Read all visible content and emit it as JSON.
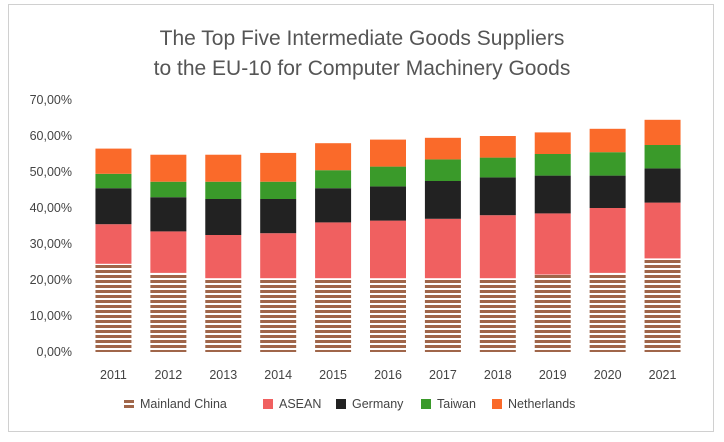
{
  "chart_data": {
    "type": "bar",
    "stacked": true,
    "title_line1": "The Top Five Intermediate Goods Suppliers",
    "title_line2": "to the EU-10 for Computer Machinery Goods",
    "categories": [
      "2011",
      "2012",
      "2013",
      "2014",
      "2015",
      "2016",
      "2017",
      "2018",
      "2019",
      "2020",
      "2021"
    ],
    "y_tick_labels": [
      "0,00%",
      "10,00%",
      "20,00%",
      "30,00%",
      "40,00%",
      "50,00%",
      "60,00%",
      "70,00%"
    ],
    "ylim": [
      0,
      70
    ],
    "series": [
      {
        "name": "Mainland China",
        "color": "#a0664a",
        "pattern": "striped",
        "values": [
          24.5,
          22.0,
          20.5,
          20.5,
          20.5,
          20.5,
          20.5,
          20.5,
          21.5,
          22.0,
          26.0
        ]
      },
      {
        "name": "ASEAN",
        "color": "#f06060",
        "values": [
          11.0,
          11.5,
          12.0,
          12.5,
          15.5,
          16.0,
          16.5,
          17.5,
          17.0,
          18.0,
          15.5
        ]
      },
      {
        "name": "Germany",
        "color": "#222222",
        "values": [
          10.0,
          9.5,
          10.0,
          9.5,
          9.5,
          9.5,
          10.5,
          10.5,
          10.5,
          9.0,
          9.5
        ]
      },
      {
        "name": "Taiwan",
        "color": "#3a9a2a",
        "values": [
          4.0,
          4.3,
          4.8,
          4.8,
          5.0,
          5.5,
          6.0,
          5.5,
          6.0,
          6.5,
          6.5
        ]
      },
      {
        "name": "Netherlands",
        "color": "#fa6a2a",
        "values": [
          7.0,
          7.5,
          7.5,
          8.0,
          7.5,
          7.5,
          6.0,
          6.0,
          6.0,
          6.5,
          7.0
        ]
      }
    ],
    "legend_labels": [
      "Mainland China",
      "ASEAN",
      "Germany",
      "Taiwan",
      "Netherlands"
    ],
    "legend_position": "bottom",
    "grid": false
  }
}
